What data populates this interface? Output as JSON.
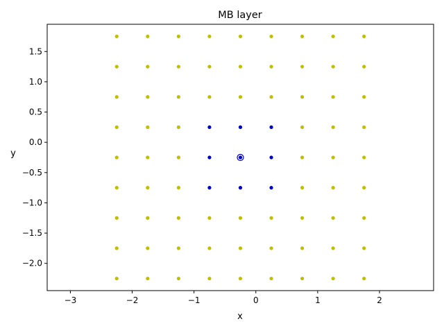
{
  "chart_data": {
    "type": "scatter",
    "title": "MB layer",
    "xlabel": "x",
    "ylabel": "y",
    "xlim": [
      -3.375,
      2.875
    ],
    "ylim": [
      -2.45,
      1.95
    ],
    "xticks": [
      -3,
      -2,
      -1,
      0,
      1,
      2
    ],
    "xtick_labels": [
      "−3",
      "−2",
      "−1",
      "0",
      "1",
      "2"
    ],
    "yticks": [
      -2.0,
      -1.5,
      -1.0,
      -0.5,
      0.0,
      0.5,
      1.0,
      1.5
    ],
    "ytick_labels": [
      "−2.0",
      "−1.5",
      "−1.0",
      "−0.5",
      "0.0",
      "0.5",
      "1.0",
      "1.5"
    ],
    "grid": false,
    "legend": "none",
    "colors": {
      "outer": "#bfbf00",
      "inner": "#0000cc",
      "center_ring": "#0000cc"
    },
    "series": [
      {
        "color_key": "outer",
        "points": [
          [
            -2.25,
            1.75
          ],
          [
            -1.75,
            1.75
          ],
          [
            -1.25,
            1.75
          ],
          [
            -0.75,
            1.75
          ],
          [
            -0.25,
            1.75
          ],
          [
            0.25,
            1.75
          ],
          [
            0.75,
            1.75
          ],
          [
            1.25,
            1.75
          ],
          [
            1.75,
            1.75
          ],
          [
            -2.25,
            1.25
          ],
          [
            -1.75,
            1.25
          ],
          [
            -1.25,
            1.25
          ],
          [
            -0.75,
            1.25
          ],
          [
            -0.25,
            1.25
          ],
          [
            0.25,
            1.25
          ],
          [
            0.75,
            1.25
          ],
          [
            1.25,
            1.25
          ],
          [
            1.75,
            1.25
          ],
          [
            -2.25,
            0.75
          ],
          [
            -1.75,
            0.75
          ],
          [
            -1.25,
            0.75
          ],
          [
            -0.75,
            0.75
          ],
          [
            -0.25,
            0.75
          ],
          [
            0.25,
            0.75
          ],
          [
            0.75,
            0.75
          ],
          [
            1.25,
            0.75
          ],
          [
            1.75,
            0.75
          ],
          [
            -2.25,
            0.25
          ],
          [
            -1.75,
            0.25
          ],
          [
            -1.25,
            0.25
          ],
          [
            0.75,
            0.25
          ],
          [
            1.25,
            0.25
          ],
          [
            1.75,
            0.25
          ],
          [
            -2.25,
            -0.25
          ],
          [
            -1.75,
            -0.25
          ],
          [
            -1.25,
            -0.25
          ],
          [
            0.75,
            -0.25
          ],
          [
            1.25,
            -0.25
          ],
          [
            1.75,
            -0.25
          ],
          [
            -2.25,
            -0.75
          ],
          [
            -1.75,
            -0.75
          ],
          [
            -1.25,
            -0.75
          ],
          [
            0.75,
            -0.75
          ],
          [
            1.25,
            -0.75
          ],
          [
            1.75,
            -0.75
          ],
          [
            -2.25,
            -1.25
          ],
          [
            -1.75,
            -1.25
          ],
          [
            -1.25,
            -1.25
          ],
          [
            -0.75,
            -1.25
          ],
          [
            -0.25,
            -1.25
          ],
          [
            0.25,
            -1.25
          ],
          [
            0.75,
            -1.25
          ],
          [
            1.25,
            -1.25
          ],
          [
            1.75,
            -1.25
          ],
          [
            -2.25,
            -1.75
          ],
          [
            -1.75,
            -1.75
          ],
          [
            -1.25,
            -1.75
          ],
          [
            -0.75,
            -1.75
          ],
          [
            -0.25,
            -1.75
          ],
          [
            0.25,
            -1.75
          ],
          [
            0.75,
            -1.75
          ],
          [
            1.25,
            -1.75
          ],
          [
            1.75,
            -1.75
          ],
          [
            -2.25,
            -2.25
          ],
          [
            -1.75,
            -2.25
          ],
          [
            -1.25,
            -2.25
          ],
          [
            -0.75,
            -2.25
          ],
          [
            -0.25,
            -2.25
          ],
          [
            0.25,
            -2.25
          ],
          [
            0.75,
            -2.25
          ],
          [
            1.25,
            -2.25
          ],
          [
            1.75,
            -2.25
          ]
        ]
      },
      {
        "color_key": "inner",
        "points": [
          [
            -0.75,
            0.25
          ],
          [
            -0.25,
            0.25
          ],
          [
            0.25,
            0.25
          ],
          [
            -0.75,
            -0.25
          ],
          [
            -0.25,
            -0.25
          ],
          [
            0.25,
            -0.25
          ],
          [
            -0.75,
            -0.75
          ],
          [
            -0.25,
            -0.75
          ],
          [
            0.25,
            -0.75
          ]
        ]
      }
    ],
    "highlight": {
      "x": -0.25,
      "y": -0.25,
      "color_key": "center_ring"
    }
  }
}
